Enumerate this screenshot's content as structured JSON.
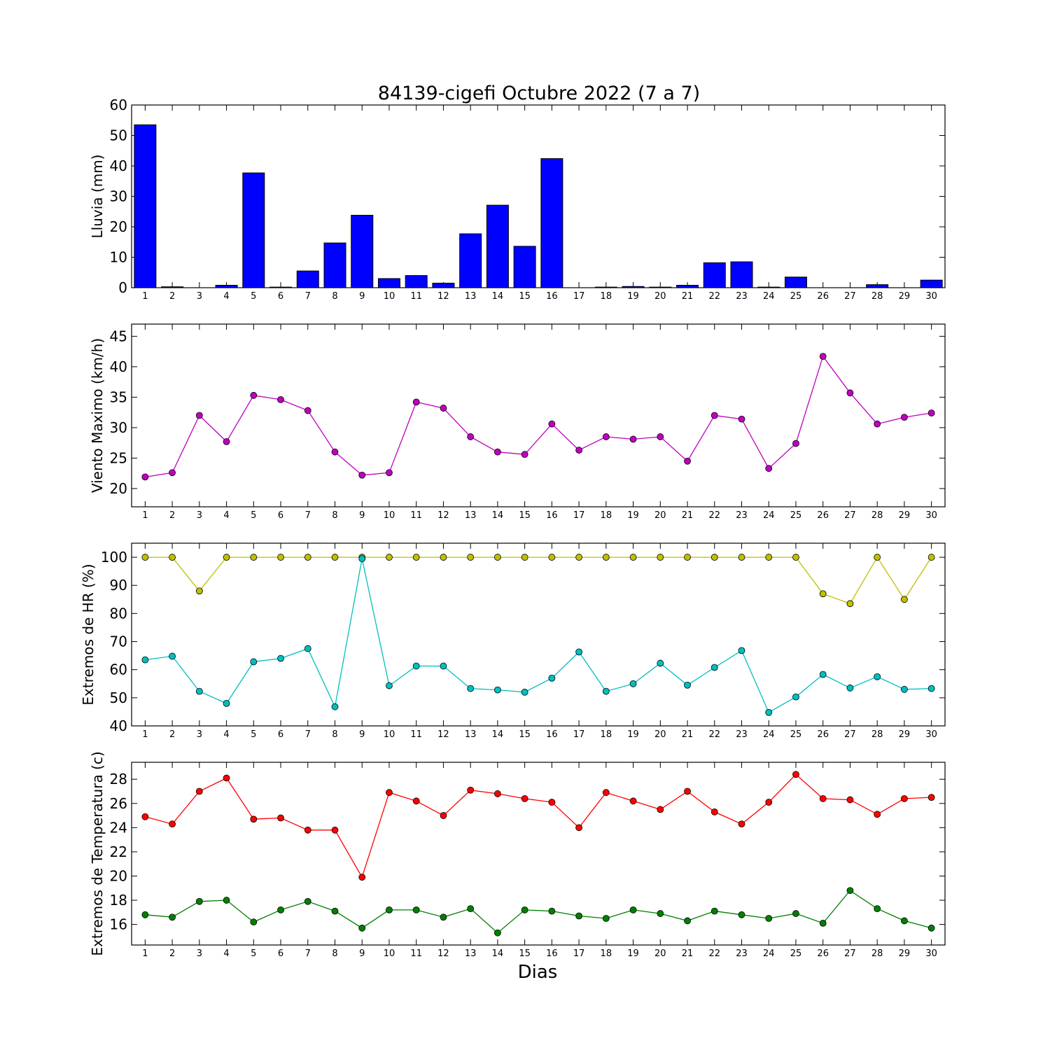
{
  "figure_title": "84139-cigefi Octubre 2022  (7 a 7)",
  "x_label": "Dias",
  "chart_data": [
    {
      "type": "bar",
      "ylabel": "Lluvia (mm)",
      "x": [
        1,
        2,
        3,
        4,
        5,
        6,
        7,
        8,
        9,
        10,
        11,
        12,
        13,
        14,
        15,
        16,
        17,
        18,
        19,
        20,
        21,
        22,
        23,
        24,
        25,
        26,
        27,
        28,
        29,
        30
      ],
      "values": [
        53.5,
        0.3,
        0,
        0.8,
        37.7,
        0.2,
        5.5,
        14.7,
        23.8,
        3.0,
        4.0,
        1.5,
        17.7,
        27.1,
        13.6,
        42.4,
        0,
        0.2,
        0.4,
        0.2,
        0.8,
        8.2,
        8.5,
        0.2,
        3.5,
        0,
        0,
        1.0,
        0,
        2.5
      ],
      "ylim": [
        0,
        60
      ],
      "yticks": [
        0,
        10,
        20,
        30,
        40,
        50,
        60
      ],
      "color": "#0000ff"
    },
    {
      "type": "line",
      "ylabel": "Viento Maximo (km/h)",
      "x": [
        1,
        2,
        3,
        4,
        5,
        6,
        7,
        8,
        9,
        10,
        11,
        12,
        13,
        14,
        15,
        16,
        17,
        18,
        19,
        20,
        21,
        22,
        23,
        24,
        25,
        26,
        27,
        28,
        29,
        30
      ],
      "series": [
        {
          "values": [
            21.9,
            22.6,
            32.0,
            27.7,
            35.3,
            34.6,
            32.8,
            26.0,
            22.2,
            22.6,
            34.2,
            33.2,
            28.5,
            26.0,
            25.6,
            30.6,
            26.3,
            28.5,
            28.1,
            28.5,
            24.5,
            32.0,
            31.4,
            23.3,
            27.4,
            41.7,
            35.7,
            30.6,
            31.7,
            32.4
          ],
          "color": "#bf00bf"
        }
      ],
      "ylim": [
        17,
        47
      ],
      "yticks": [
        20,
        25,
        30,
        35,
        40,
        45
      ]
    },
    {
      "type": "line",
      "ylabel": "Extremos de HR (%)",
      "x": [
        1,
        2,
        3,
        4,
        5,
        6,
        7,
        8,
        9,
        10,
        11,
        12,
        13,
        14,
        15,
        16,
        17,
        18,
        19,
        20,
        21,
        22,
        23,
        24,
        25,
        26,
        27,
        28,
        29,
        30
      ],
      "series": [
        {
          "values": [
            100,
            100,
            88,
            100,
            100,
            100,
            100,
            100,
            100,
            100,
            100,
            100,
            100,
            100,
            100,
            100,
            100,
            100,
            100,
            100,
            100,
            100,
            100,
            100,
            100,
            87,
            83.5,
            100,
            85,
            100
          ],
          "color": "#bfbf00"
        },
        {
          "values": [
            63.5,
            64.8,
            52.3,
            48.0,
            62.8,
            64.0,
            67.5,
            46.8,
            99.5,
            54.3,
            61.3,
            61.3,
            53.3,
            52.8,
            52.0,
            57.0,
            66.3,
            52.3,
            55.0,
            62.3,
            54.5,
            60.8,
            66.8,
            44.8,
            50.3,
            58.3,
            53.5,
            57.5,
            53.0,
            53.3
          ],
          "color": "#00bfbf"
        }
      ],
      "ylim": [
        40,
        105
      ],
      "yticks": [
        40,
        50,
        60,
        70,
        80,
        90,
        100
      ]
    },
    {
      "type": "line",
      "ylabel": "Extremos de Temperatura (c)",
      "x": [
        1,
        2,
        3,
        4,
        5,
        6,
        7,
        8,
        9,
        10,
        11,
        12,
        13,
        14,
        15,
        16,
        17,
        18,
        19,
        20,
        21,
        22,
        23,
        24,
        25,
        26,
        27,
        28,
        29,
        30
      ],
      "series": [
        {
          "values": [
            24.9,
            24.3,
            27.0,
            28.1,
            24.7,
            24.8,
            23.8,
            23.8,
            19.9,
            26.9,
            26.2,
            25.0,
            27.1,
            26.8,
            26.4,
            26.1,
            24.0,
            26.9,
            26.2,
            25.5,
            27.0,
            25.3,
            24.3,
            26.1,
            28.4,
            26.4,
            26.3,
            25.1,
            26.4,
            26.5
          ],
          "color": "#ff0000"
        },
        {
          "values": [
            16.8,
            16.6,
            17.9,
            18.0,
            16.2,
            17.2,
            17.9,
            17.1,
            15.7,
            17.2,
            17.2,
            16.6,
            17.3,
            15.3,
            17.2,
            17.1,
            16.7,
            16.5,
            17.2,
            16.9,
            16.3,
            17.1,
            16.8,
            16.5,
            16.9,
            16.1,
            18.8,
            17.3,
            16.3,
            15.7
          ],
          "color": "#008000"
        }
      ],
      "ylim": [
        14.3,
        29.4
      ],
      "yticks": [
        16,
        18,
        20,
        22,
        24,
        26,
        28
      ]
    }
  ]
}
